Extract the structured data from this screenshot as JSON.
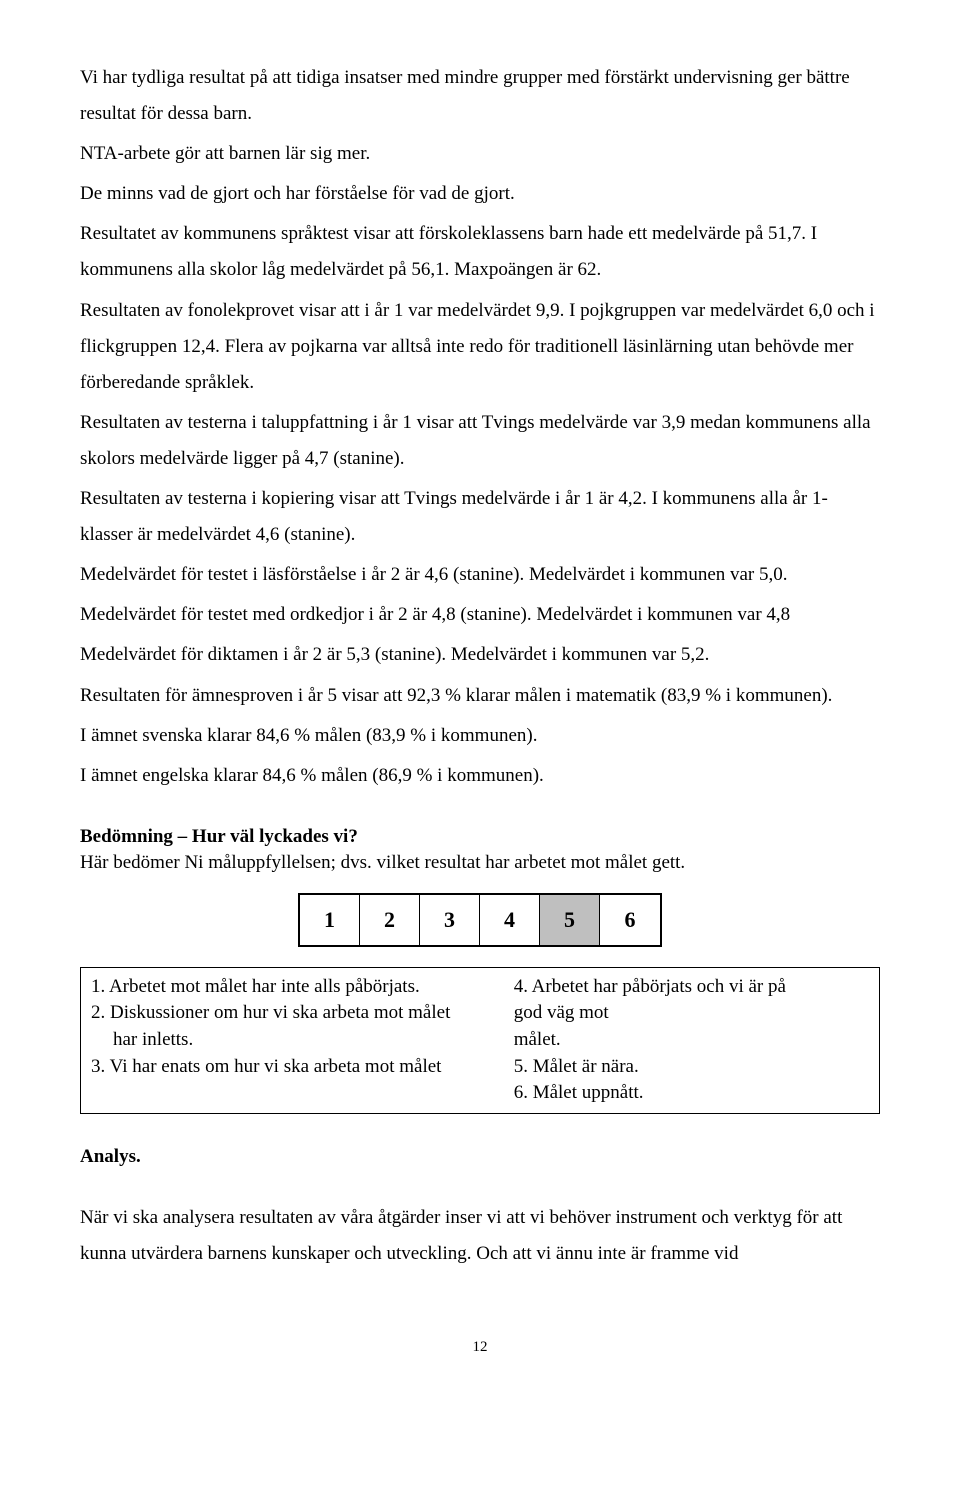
{
  "body": {
    "p1": "Vi har tydliga resultat på att tidiga insatser med mindre grupper med förstärkt undervisning ger bättre resultat för dessa barn.",
    "p2": "NTA-arbete gör att barnen lär sig mer.",
    "p3": "De minns vad de gjort och har förståelse för vad de gjort.",
    "p4": "Resultatet av kommunens språktest visar att förskoleklassens barn hade ett medelvärde på 51,7. I kommunens alla skolor låg medelvärdet på 56,1. Maxpoängen är 62.",
    "p5": "Resultaten av fonolekprovet visar att i år 1 var medelvärdet 9,9. I pojkgruppen var medelvärdet 6,0 och i flickgruppen 12,4. Flera av pojkarna var alltså inte redo för traditionell läsinlärning utan behövde mer förberedande språklek.",
    "p6": "Resultaten av testerna i taluppfattning i år 1 visar att Tvings medelvärde var 3,9 medan kommunens alla skolors medelvärde ligger på 4,7 (stanine).",
    "p7": "Resultaten av testerna i kopiering visar att Tvings medelvärde i år 1 är 4,2. I kommunens alla år 1-klasser är medelvärdet 4,6 (stanine).",
    "p8": "Medelvärdet för testet i läsförståelse i år 2 är 4,6 (stanine). Medelvärdet i kommunen var 5,0.",
    "p9": "Medelvärdet för testet med ordkedjor i år 2 är 4,8 (stanine). Medelvärdet i kommunen var 4,8",
    "p10": "Medelvärdet för diktamen i år 2 är 5,3 (stanine). Medelvärdet i kommunen var 5,2.",
    "p11": "Resultaten för ämnesproven i år 5 visar att 92,3 % klarar målen i matematik (83,9 % i kommunen).",
    "p12": "I ämnet svenska klarar 84,6 % målen (83,9 % i kommunen).",
    "p13": "I ämnet engelska klarar 84,6 % målen (86,9 % i kommunen)."
  },
  "assessment": {
    "heading": "Bedömning – Hur väl lyckades vi?",
    "sub": "Här bedömer Ni måluppfyllelsen; dvs. vilket resultat har arbetet mot målet gett."
  },
  "rating": {
    "values": [
      "1",
      "2",
      "3",
      "4",
      "5",
      "6"
    ],
    "selected_index": 4,
    "background_color": "#ffffff",
    "selected_color": "#bfbfbf",
    "border_color": "#000000"
  },
  "legend": {
    "left": {
      "i1": "1. Arbetet mot målet har inte alls påbörjats.",
      "i2a": "2. Diskussioner om hur vi ska arbeta mot målet",
      "i2b": "har inletts.",
      "i3": "3. Vi har enats om hur vi ska arbeta mot målet"
    },
    "right": {
      "i4a": "4. Arbetet har påbörjats och vi är på",
      "i4b": "god väg mot",
      "i4c": "målet.",
      "i5": "5. Målet är nära.",
      "i6": "6. Målet uppnått."
    }
  },
  "analysis": {
    "heading": "Analys.",
    "p1": "När vi ska analysera resultaten av våra åtgärder inser vi att vi behöver instrument och verktyg för att kunna utvärdera barnens kunskaper och utveckling. Och att vi ännu inte är framme vid"
  },
  "page_number": "12"
}
